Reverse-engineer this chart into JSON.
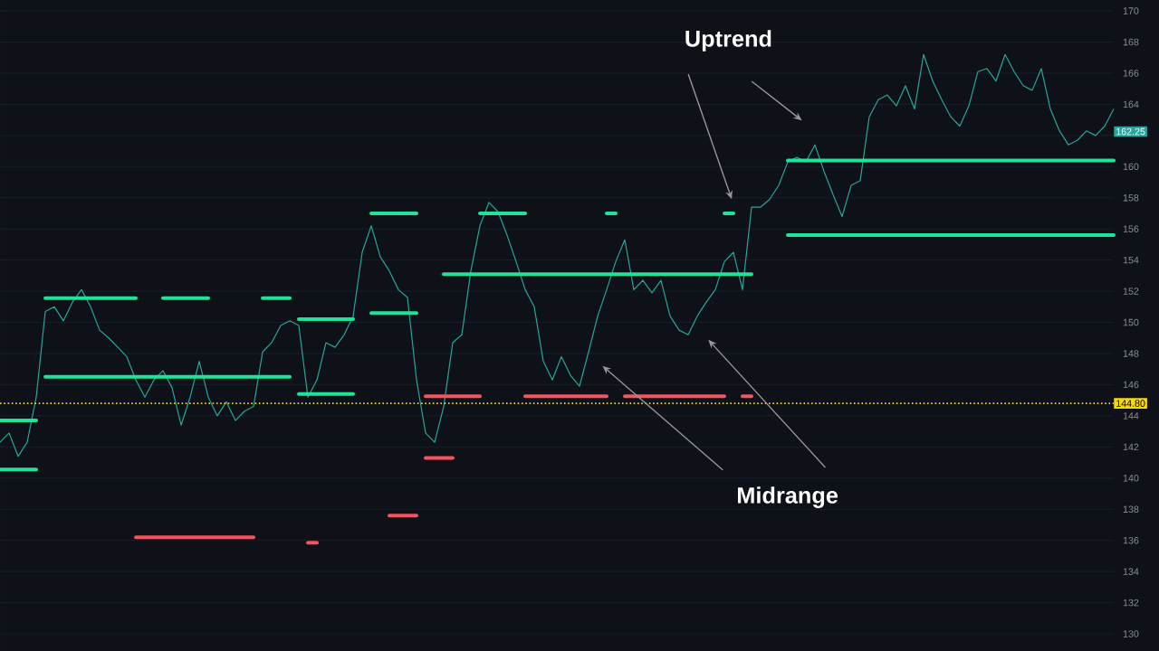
{
  "chart_data": {
    "type": "line",
    "categories": [
      null,
      null,
      null,
      null,
      null,
      null,
      null,
      null,
      null,
      null,
      null,
      null,
      null,
      null,
      null,
      null,
      null,
      null,
      null,
      null,
      null,
      null,
      null,
      null,
      null,
      null,
      null,
      null,
      null,
      null,
      null,
      null,
      null,
      null,
      null,
      null,
      null,
      null,
      null,
      null,
      null,
      null,
      null,
      null,
      null,
      null,
      null,
      null,
      null,
      null,
      null,
      null,
      null,
      null,
      null,
      null,
      null,
      null,
      null,
      null,
      null,
      null,
      null,
      null,
      null,
      null,
      null,
      null,
      null,
      null,
      null,
      null,
      null,
      null,
      null,
      null,
      null,
      null,
      null,
      null,
      null,
      null,
      null,
      null,
      null,
      null,
      null,
      null,
      null,
      null,
      null,
      null,
      null,
      null,
      null,
      null,
      null,
      null,
      null,
      null,
      null,
      null,
      null,
      null,
      null,
      null,
      null,
      null,
      null,
      null,
      null,
      null,
      null,
      null,
      null,
      null,
      null,
      null,
      null,
      null,
      null,
      null,
      null,
      null
    ],
    "series": [
      {
        "color": "#26a69a",
        "values": [
          142.3,
          142.9,
          141.4,
          142.3,
          145.2,
          150.7,
          151.0,
          150.1,
          151.3,
          152.1,
          151.0,
          149.5,
          149.0,
          148.4,
          147.8,
          146.3,
          145.2,
          146.3,
          146.9,
          145.8,
          143.4,
          145.2,
          147.5,
          145.2,
          144.0,
          144.9,
          143.7,
          144.3,
          144.6,
          148.1,
          148.7,
          149.8,
          150.1,
          149.8,
          145.2,
          146.3,
          148.7,
          148.4,
          149.2,
          150.4,
          154.5,
          156.2,
          154.2,
          153.3,
          152.1,
          151.6,
          146.3,
          142.9,
          142.3,
          144.6,
          148.7,
          149.2,
          153.3,
          156.2,
          157.7,
          157.1,
          155.6,
          153.9,
          152.1,
          151.0,
          147.5,
          146.3,
          147.8,
          146.6,
          145.9,
          148.1,
          150.4,
          152.1,
          153.9,
          155.3,
          152.1,
          152.7,
          151.9,
          152.7,
          150.4,
          149.5,
          149.2,
          150.4,
          151.3,
          152.1,
          153.9,
          154.5,
          152.1,
          157.4,
          157.4,
          157.9,
          158.8,
          160.3,
          160.6,
          160.3,
          161.4,
          159.7,
          158.2,
          156.8,
          158.8,
          159.1,
          163.2,
          164.3,
          164.6,
          163.9,
          165.2,
          163.7,
          167.2,
          165.5,
          164.3,
          163.2,
          162.6,
          163.9,
          166.1,
          166.3,
          165.5,
          167.2,
          166.1,
          165.2,
          164.9,
          166.3,
          163.7,
          162.3,
          161.4,
          161.7,
          162.3,
          162.0,
          162.6,
          163.7
        ]
      },
      {
        "type": "step",
        "color": "#1fe39a",
        "values": [
          143.7,
          143.7,
          143.7,
          143.7,
          143.7,
          151.55,
          151.55,
          151.55,
          151.55,
          151.55,
          151.55,
          151.55,
          151.55,
          151.55,
          151.55,
          151.55,
          null,
          null,
          151.55,
          151.55,
          151.55,
          151.55,
          151.55,
          151.55,
          null,
          null,
          null,
          null,
          null,
          151.55,
          151.55,
          151.55,
          151.55,
          150.2,
          150.2,
          150.2,
          150.2,
          150.2,
          150.2,
          150.2,
          null,
          157.0,
          157.0,
          157.0,
          157.0,
          157.0,
          157.0,
          null,
          null,
          153.1,
          153.1,
          153.1,
          153.1,
          153.1,
          153.1,
          153.1,
          153.1,
          153.1,
          153.1,
          153.1,
          153.1,
          153.1,
          153.1,
          153.1,
          153.1,
          153.1,
          153.1,
          153.1,
          153.1,
          153.1,
          153.1,
          153.1,
          153.1,
          153.1,
          153.1,
          153.1,
          153.1,
          153.1,
          153.1,
          153.1,
          153.1,
          153.1,
          153.1,
          153.1,
          null,
          null,
          null,
          160.4,
          160.4,
          160.4,
          160.4,
          160.4,
          160.4,
          160.4,
          160.4,
          160.4,
          160.4,
          160.4,
          160.4,
          160.4,
          160.4,
          160.4,
          160.4,
          160.4,
          160.4,
          160.4,
          160.4,
          160.4,
          160.4,
          160.4,
          160.4,
          160.4,
          160.4,
          160.4,
          160.4,
          160.4,
          160.4,
          160.4,
          160.4,
          160.4,
          160.4,
          160.4,
          160.4,
          160.4
        ]
      },
      {
        "type": "step",
        "color": "#1fe39a",
        "values": [
          140.55,
          140.55,
          140.55,
          140.55,
          140.55,
          146.5,
          146.5,
          146.5,
          146.5,
          146.5,
          146.5,
          146.5,
          146.5,
          146.5,
          146.5,
          146.5,
          146.5,
          146.5,
          146.5,
          146.5,
          146.5,
          146.5,
          146.5,
          146.5,
          146.5,
          146.5,
          146.5,
          146.5,
          146.5,
          146.5,
          146.5,
          146.5,
          146.5,
          145.4,
          145.4,
          145.4,
          145.4,
          145.4,
          145.4,
          145.4,
          null,
          150.6,
          150.6,
          150.6,
          150.6,
          150.6,
          150.6,
          null,
          null,
          null,
          null,
          null,
          null,
          null,
          null,
          null,
          null,
          null,
          null,
          null,
          null,
          null,
          null,
          null,
          null,
          null,
          null,
          null,
          null,
          null,
          null,
          null,
          null,
          null,
          null,
          null,
          null,
          null,
          null,
          null,
          null,
          null,
          null,
          null,
          null,
          null,
          null,
          155.6,
          155.6,
          155.6,
          155.6,
          155.6,
          155.6,
          155.6,
          155.6,
          155.6,
          155.6,
          155.6,
          155.6,
          155.6,
          155.6,
          155.6,
          155.6,
          155.6,
          155.6,
          155.6,
          155.6,
          155.6,
          155.6,
          155.6,
          155.6,
          155.6,
          155.6,
          155.6,
          155.6,
          155.6,
          155.6,
          155.6,
          155.6,
          155.6,
          155.6,
          155.6,
          155.6,
          155.6
        ]
      },
      {
        "type": "step",
        "color": "#1fe39a",
        "values": [
          null,
          null,
          null,
          null,
          null,
          null,
          null,
          null,
          null,
          null,
          null,
          null,
          null,
          null,
          null,
          null,
          null,
          null,
          null,
          null,
          null,
          null,
          null,
          null,
          null,
          null,
          null,
          null,
          null,
          null,
          null,
          null,
          null,
          null,
          null,
          null,
          null,
          null,
          null,
          null,
          null,
          null,
          null,
          null,
          null,
          null,
          null,
          null,
          null,
          null,
          null,
          null,
          null,
          157.0,
          157.0,
          157.0,
          157.0,
          157.0,
          157.0,
          null,
          null,
          null,
          null,
          null,
          null,
          null,
          null,
          157.0,
          157.0,
          null,
          null,
          null,
          null,
          null,
          null,
          null,
          null,
          null,
          null,
          null,
          157.0,
          157.0,
          null,
          null,
          null,
          null,
          null,
          null,
          null,
          null,
          null,
          null,
          null,
          null,
          null,
          null,
          null,
          null,
          null,
          null,
          null,
          null,
          null,
          null,
          null,
          null,
          null,
          null,
          null,
          null,
          null,
          null,
          null,
          null,
          null,
          null,
          null,
          null,
          null,
          null,
          null,
          null,
          null,
          null
        ]
      },
      {
        "type": "step",
        "color": "#f7525f",
        "values": [
          null,
          null,
          null,
          null,
          null,
          null,
          null,
          null,
          null,
          null,
          null,
          null,
          null,
          null,
          null,
          null,
          null,
          null,
          null,
          null,
          null,
          null,
          null,
          null,
          null,
          null,
          null,
          null,
          null,
          null,
          null,
          null,
          null,
          null,
          null,
          null,
          null,
          null,
          null,
          null,
          null,
          null,
          null,
          null,
          null,
          null,
          null,
          145.25,
          145.25,
          145.25,
          145.25,
          145.25,
          145.25,
          145.25,
          null,
          null,
          null,
          null,
          145.25,
          145.25,
          145.25,
          145.25,
          145.25,
          145.25,
          145.25,
          145.25,
          145.25,
          145.25,
          null,
          145.25,
          145.25,
          145.25,
          145.25,
          145.25,
          145.25,
          145.25,
          145.25,
          145.25,
          145.25,
          145.25,
          145.25,
          null,
          145.25,
          145.25,
          null,
          null,
          null,
          null,
          null,
          null,
          null,
          null,
          null,
          null,
          null,
          null,
          null,
          null,
          null,
          null,
          null,
          null,
          null,
          null,
          null,
          null,
          null,
          null,
          null,
          null,
          null,
          null,
          null,
          null,
          null,
          null,
          null,
          null,
          null,
          null,
          null,
          null,
          null,
          null
        ]
      },
      {
        "type": "step",
        "color": "#f7525f",
        "values": [
          null,
          null,
          null,
          null,
          null,
          null,
          null,
          null,
          null,
          null,
          null,
          null,
          null,
          null,
          null,
          136.2,
          136.2,
          136.2,
          136.2,
          136.2,
          136.2,
          136.2,
          136.2,
          136.2,
          136.2,
          136.2,
          136.2,
          136.2,
          136.2,
          null,
          null,
          null,
          null,
          null,
          135.85,
          135.85,
          null,
          null,
          null,
          null,
          null,
          null,
          null,
          137.6,
          137.6,
          137.6,
          137.6,
          141.3,
          141.3,
          141.3,
          141.3,
          null,
          null,
          null,
          null,
          null,
          null,
          null,
          null,
          null,
          null,
          null,
          null,
          null,
          null,
          null,
          null,
          null,
          null,
          null,
          null,
          null,
          null,
          null,
          null,
          null,
          null,
          null,
          null,
          null,
          null,
          null,
          null,
          null,
          null,
          null,
          null,
          null,
          null,
          null,
          null,
          null,
          null,
          null,
          null,
          null,
          null,
          null,
          null,
          null,
          null,
          null,
          null,
          null,
          null,
          null,
          null,
          null,
          null,
          null,
          null,
          null,
          null,
          null,
          null,
          null,
          null,
          null,
          null,
          null,
          null,
          null,
          null,
          null
        ]
      }
    ],
    "ylim": [
      128.9,
      170.7
    ],
    "yticks": [
      130,
      132,
      134,
      136,
      138,
      140,
      142,
      144,
      146,
      148,
      150,
      152,
      154,
      156,
      158,
      160,
      {
        "value": 162,
        "label": null
      },
      164,
      166,
      168,
      170
    ],
    "tick_labels": "y",
    "grid": "y",
    "ref_lines": [
      {
        "axis": "y",
        "value": 144.8,
        "label": "144.80",
        "color": "#f5d90a",
        "line_style": "dotted"
      }
    ],
    "annotations": [
      "Uptrend",
      "Midrange",
      {
        "text": "162.25",
        "y": 162.25
      }
    ]
  }
}
